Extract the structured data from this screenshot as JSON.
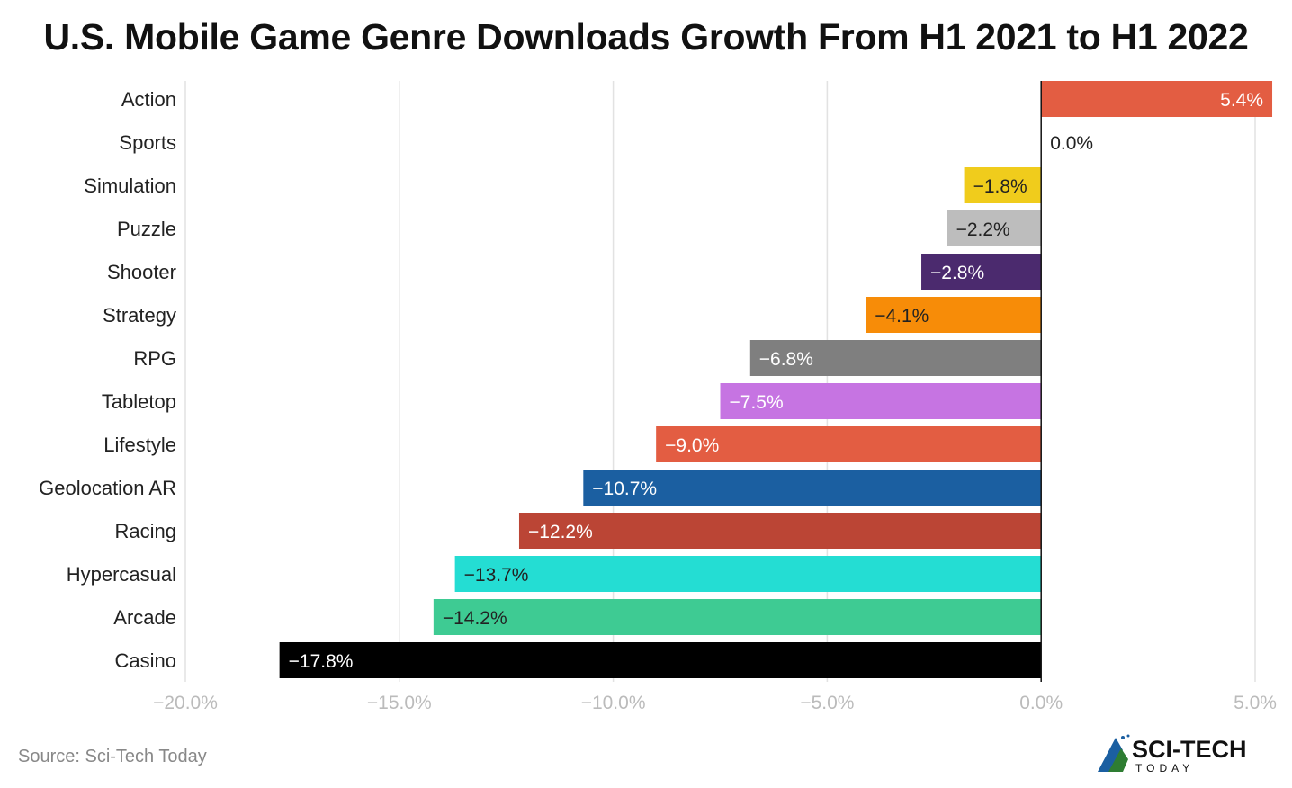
{
  "chart_data": {
    "type": "bar",
    "orientation": "horizontal",
    "title": "U.S. Mobile Game Genre Downloads Growth From H1 2021 to H1 2022",
    "categories": [
      "Action",
      "Sports",
      "Simulation",
      "Puzzle",
      "Shooter",
      "Strategy",
      "RPG",
      "Tabletop",
      "Lifestyle",
      "Geolocation AR",
      "Racing",
      "Hypercasual",
      "Arcade",
      "Casino"
    ],
    "values": [
      5.4,
      0.0,
      -1.8,
      -2.2,
      -2.8,
      -4.1,
      -6.8,
      -7.5,
      -9.0,
      -10.7,
      -12.2,
      -13.7,
      -14.2,
      -17.8
    ],
    "value_labels": [
      "5.4%",
      "0.0%",
      "−1.8%",
      "−2.2%",
      "−2.8%",
      "−4.1%",
      "−6.8%",
      "−7.5%",
      "−9.0%",
      "−10.7%",
      "−12.2%",
      "−13.7%",
      "−14.2%",
      "−17.8%"
    ],
    "colors": [
      "#e35d42",
      "#ffffff",
      "#f0cc1c",
      "#bdbdbd",
      "#4b2a6e",
      "#f78c08",
      "#7f7f7f",
      "#c674e2",
      "#e35d42",
      "#1b5fa1",
      "#bb4535",
      "#24ddd3",
      "#3ecb93",
      "#000000"
    ],
    "label_colors": [
      "#ffffff",
      "#222222",
      "#222222",
      "#222222",
      "#ffffff",
      "#222222",
      "#ffffff",
      "#ffffff",
      "#ffffff",
      "#ffffff",
      "#ffffff",
      "#222222",
      "#222222",
      "#ffffff"
    ],
    "xlim": [
      -20,
      5
    ],
    "xticks": [
      -20,
      -15,
      -10,
      -5,
      0,
      5
    ],
    "xtick_labels": [
      "−20.0%",
      "−15.0%",
      "−10.0%",
      "−5.0%",
      "0.0%",
      "5.0%"
    ],
    "grid": true,
    "xlabel": "",
    "ylabel": ""
  },
  "source": "Source: Sci-Tech Today",
  "logo": {
    "text_main": "SCI-TECH",
    "text_sub": "TODAY"
  }
}
